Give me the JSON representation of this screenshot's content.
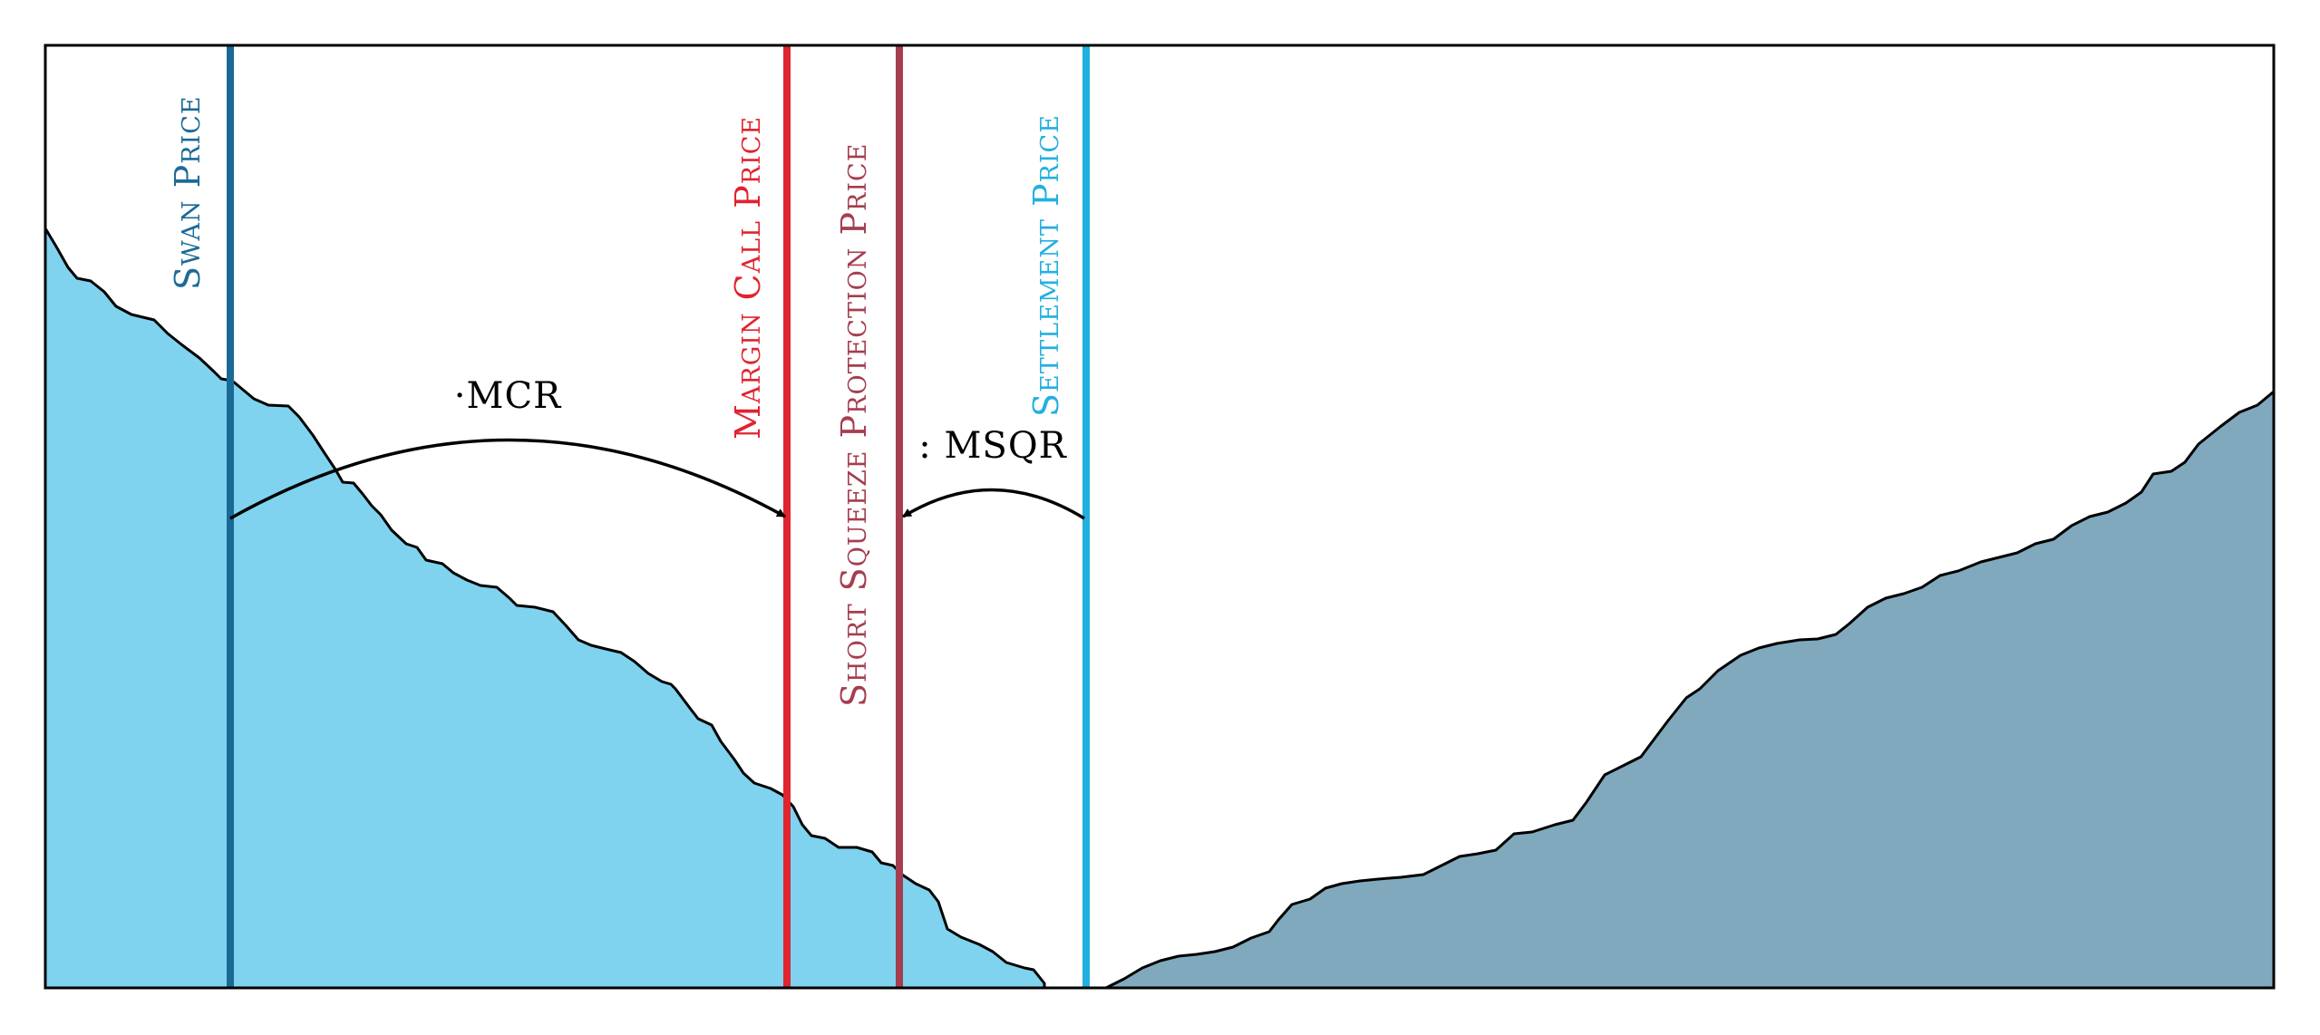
{
  "lines": {
    "swan": {
      "label": "Swan Price",
      "color": "#1b6a96"
    },
    "margin_call": {
      "label": "Margin Call Price",
      "color": "#e02430"
    },
    "short_squeeze": {
      "label": "Short Squeeze Protection Price",
      "color": "#a53e4f"
    },
    "settlement": {
      "label": "Settlement Price",
      "color": "#22b0e0"
    }
  },
  "arrows": {
    "mcr": {
      "label": "·MCR"
    },
    "msqr": {
      "label": ": MSQR"
    }
  },
  "areas": {
    "left_fill": "#7fd3ef",
    "right_fill": "#80a9bd"
  }
}
